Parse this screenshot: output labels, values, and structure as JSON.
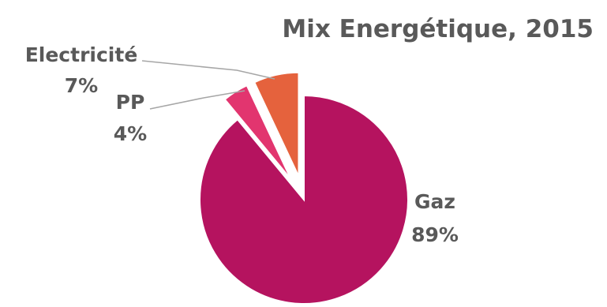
{
  "chart_data": {
    "type": "pie",
    "title": "Mix Energétique, 2015",
    "slices": [
      {
        "name": "Gaz",
        "value": 89,
        "label": "89%",
        "color": "#B5135F"
      },
      {
        "name": "PP",
        "value": 4,
        "label": "4%",
        "color": "#E2356F"
      },
      {
        "name": "Electricité",
        "value": 7,
        "label": "7%",
        "color": "#E5623D"
      }
    ],
    "exploded": [
      "PP",
      "Electricité"
    ],
    "legend": "none"
  }
}
